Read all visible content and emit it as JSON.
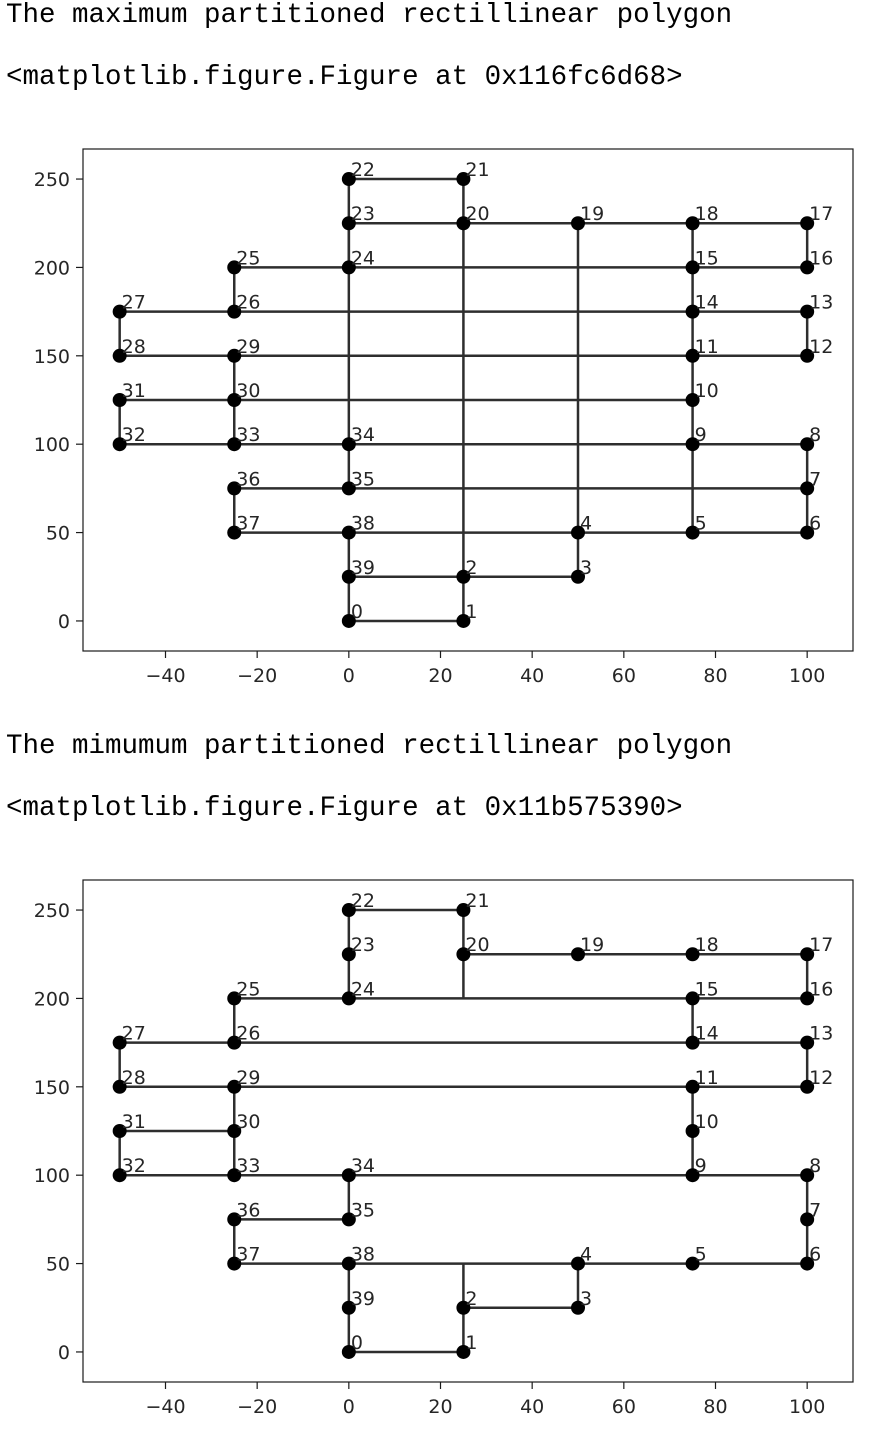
{
  "cells": [
    {
      "caption": "The maximum partitioned rectillinear polygon",
      "repr": "<matplotlib.figure.Figure at 0x116fc6d68>"
    },
    {
      "caption": "The mimumum partitioned rectillinear polygon",
      "repr": "<matplotlib.figure.Figure at 0x11b575390>"
    }
  ],
  "chart_data": [
    {
      "type": "line",
      "title": "",
      "xlabel": "",
      "ylabel": "",
      "xlim": [
        -58,
        110
      ],
      "ylim": [
        -17,
        267
      ],
      "xticks": [
        -40,
        -20,
        0,
        20,
        40,
        60,
        80,
        100
      ],
      "yticks": [
        0,
        50,
        100,
        150,
        200,
        250
      ],
      "grid": false,
      "line_color": "#2e2e2e",
      "marker_color": "#000000",
      "points": [
        {
          "label": "0",
          "x": 0,
          "y": 0
        },
        {
          "label": "1",
          "x": 25,
          "y": 0
        },
        {
          "label": "2",
          "x": 25,
          "y": 25
        },
        {
          "label": "3",
          "x": 50,
          "y": 25
        },
        {
          "label": "4",
          "x": 50,
          "y": 50
        },
        {
          "label": "5",
          "x": 75,
          "y": 50
        },
        {
          "label": "6",
          "x": 100,
          "y": 50
        },
        {
          "label": "7",
          "x": 100,
          "y": 75
        },
        {
          "label": "8",
          "x": 100,
          "y": 100
        },
        {
          "label": "9",
          "x": 75,
          "y": 100
        },
        {
          "label": "10",
          "x": 75,
          "y": 125
        },
        {
          "label": "11",
          "x": 75,
          "y": 150
        },
        {
          "label": "12",
          "x": 100,
          "y": 150
        },
        {
          "label": "13",
          "x": 100,
          "y": 175
        },
        {
          "label": "14",
          "x": 75,
          "y": 175
        },
        {
          "label": "15",
          "x": 75,
          "y": 200
        },
        {
          "label": "16",
          "x": 100,
          "y": 200
        },
        {
          "label": "17",
          "x": 100,
          "y": 225
        },
        {
          "label": "18",
          "x": 75,
          "y": 225
        },
        {
          "label": "19",
          "x": 50,
          "y": 225
        },
        {
          "label": "20",
          "x": 25,
          "y": 225
        },
        {
          "label": "21",
          "x": 25,
          "y": 250
        },
        {
          "label": "22",
          "x": 0,
          "y": 250
        },
        {
          "label": "23",
          "x": 0,
          "y": 225
        },
        {
          "label": "24",
          "x": 0,
          "y": 200
        },
        {
          "label": "25",
          "x": -25,
          "y": 200
        },
        {
          "label": "26",
          "x": -25,
          "y": 175
        },
        {
          "label": "27",
          "x": -50,
          "y": 175
        },
        {
          "label": "28",
          "x": -50,
          "y": 150
        },
        {
          "label": "29",
          "x": -25,
          "y": 150
        },
        {
          "label": "30",
          "x": -25,
          "y": 125
        },
        {
          "label": "31",
          "x": -50,
          "y": 125
        },
        {
          "label": "32",
          "x": -50,
          "y": 100
        },
        {
          "label": "33",
          "x": -25,
          "y": 100
        },
        {
          "label": "34",
          "x": 0,
          "y": 100
        },
        {
          "label": "35",
          "x": 0,
          "y": 75
        },
        {
          "label": "36",
          "x": -25,
          "y": 75
        },
        {
          "label": "37",
          "x": -25,
          "y": 50
        },
        {
          "label": "38",
          "x": 0,
          "y": 50
        },
        {
          "label": "39",
          "x": 0,
          "y": 25
        }
      ],
      "segments": [
        [
          0,
          0,
          25,
          0
        ],
        [
          25,
          0,
          25,
          25
        ],
        [
          25,
          25,
          50,
          25
        ],
        [
          50,
          25,
          50,
          50
        ],
        [
          50,
          50,
          100,
          50
        ],
        [
          100,
          50,
          100,
          100
        ],
        [
          100,
          100,
          75,
          100
        ],
        [
          75,
          100,
          75,
          150
        ],
        [
          75,
          150,
          100,
          150
        ],
        [
          100,
          150,
          100,
          175
        ],
        [
          100,
          175,
          75,
          175
        ],
        [
          75,
          175,
          75,
          200
        ],
        [
          75,
          200,
          100,
          200
        ],
        [
          100,
          200,
          100,
          225
        ],
        [
          100,
          225,
          25,
          225
        ],
        [
          25,
          225,
          25,
          250
        ],
        [
          25,
          250,
          0,
          250
        ],
        [
          0,
          250,
          0,
          200
        ],
        [
          0,
          200,
          -25,
          200
        ],
        [
          -25,
          200,
          -25,
          175
        ],
        [
          -25,
          175,
          -50,
          175
        ],
        [
          -50,
          175,
          -50,
          150
        ],
        [
          -50,
          150,
          -25,
          150
        ],
        [
          -25,
          150,
          -25,
          125
        ],
        [
          -25,
          125,
          -50,
          125
        ],
        [
          -50,
          125,
          -50,
          100
        ],
        [
          -50,
          100,
          0,
          100
        ],
        [
          0,
          100,
          0,
          75
        ],
        [
          0,
          75,
          -25,
          75
        ],
        [
          -25,
          75,
          -25,
          50
        ],
        [
          -25,
          50,
          0,
          50
        ],
        [
          0,
          50,
          0,
          0
        ],
        [
          0,
          225,
          25,
          225
        ],
        [
          0,
          200,
          75,
          200
        ],
        [
          -25,
          175,
          75,
          175
        ],
        [
          -25,
          150,
          75,
          150
        ],
        [
          -25,
          125,
          75,
          125
        ],
        [
          0,
          100,
          75,
          100
        ],
        [
          0,
          75,
          100,
          75
        ],
        [
          0,
          50,
          50,
          50
        ],
        [
          0,
          25,
          25,
          25
        ],
        [
          25,
          225,
          25,
          25
        ],
        [
          50,
          225,
          50,
          50
        ],
        [
          75,
          225,
          75,
          200
        ],
        [
          75,
          175,
          75,
          150
        ],
        [
          75,
          100,
          75,
          50
        ],
        [
          0,
          225,
          0,
          100
        ],
        [
          -25,
          200,
          -25,
          175
        ],
        [
          -25,
          150,
          -25,
          100
        ]
      ]
    },
    {
      "type": "line",
      "title": "",
      "xlabel": "",
      "ylabel": "",
      "xlim": [
        -58,
        110
      ],
      "ylim": [
        -17,
        267
      ],
      "xticks": [
        -40,
        -20,
        0,
        20,
        40,
        60,
        80,
        100
      ],
      "yticks": [
        0,
        50,
        100,
        150,
        200,
        250
      ],
      "grid": false,
      "line_color": "#2e2e2e",
      "marker_color": "#000000",
      "points": [
        {
          "label": "0",
          "x": 0,
          "y": 0
        },
        {
          "label": "1",
          "x": 25,
          "y": 0
        },
        {
          "label": "2",
          "x": 25,
          "y": 25
        },
        {
          "label": "3",
          "x": 50,
          "y": 25
        },
        {
          "label": "4",
          "x": 50,
          "y": 50
        },
        {
          "label": "5",
          "x": 75,
          "y": 50
        },
        {
          "label": "6",
          "x": 100,
          "y": 50
        },
        {
          "label": "7",
          "x": 100,
          "y": 75
        },
        {
          "label": "8",
          "x": 100,
          "y": 100
        },
        {
          "label": "9",
          "x": 75,
          "y": 100
        },
        {
          "label": "10",
          "x": 75,
          "y": 125
        },
        {
          "label": "11",
          "x": 75,
          "y": 150
        },
        {
          "label": "12",
          "x": 100,
          "y": 150
        },
        {
          "label": "13",
          "x": 100,
          "y": 175
        },
        {
          "label": "14",
          "x": 75,
          "y": 175
        },
        {
          "label": "15",
          "x": 75,
          "y": 200
        },
        {
          "label": "16",
          "x": 100,
          "y": 200
        },
        {
          "label": "17",
          "x": 100,
          "y": 225
        },
        {
          "label": "18",
          "x": 75,
          "y": 225
        },
        {
          "label": "19",
          "x": 50,
          "y": 225
        },
        {
          "label": "20",
          "x": 25,
          "y": 225
        },
        {
          "label": "21",
          "x": 25,
          "y": 250
        },
        {
          "label": "22",
          "x": 0,
          "y": 250
        },
        {
          "label": "23",
          "x": 0,
          "y": 225
        },
        {
          "label": "24",
          "x": 0,
          "y": 200
        },
        {
          "label": "25",
          "x": -25,
          "y": 200
        },
        {
          "label": "26",
          "x": -25,
          "y": 175
        },
        {
          "label": "27",
          "x": -50,
          "y": 175
        },
        {
          "label": "28",
          "x": -50,
          "y": 150
        },
        {
          "label": "29",
          "x": -25,
          "y": 150
        },
        {
          "label": "30",
          "x": -25,
          "y": 125
        },
        {
          "label": "31",
          "x": -50,
          "y": 125
        },
        {
          "label": "32",
          "x": -50,
          "y": 100
        },
        {
          "label": "33",
          "x": -25,
          "y": 100
        },
        {
          "label": "34",
          "x": 0,
          "y": 100
        },
        {
          "label": "35",
          "x": 0,
          "y": 75
        },
        {
          "label": "36",
          "x": -25,
          "y": 75
        },
        {
          "label": "37",
          "x": -25,
          "y": 50
        },
        {
          "label": "38",
          "x": 0,
          "y": 50
        },
        {
          "label": "39",
          "x": 0,
          "y": 25
        }
      ],
      "segments": [
        [
          0,
          0,
          25,
          0
        ],
        [
          25,
          0,
          25,
          25
        ],
        [
          25,
          25,
          50,
          25
        ],
        [
          50,
          25,
          50,
          50
        ],
        [
          50,
          50,
          100,
          50
        ],
        [
          100,
          50,
          100,
          100
        ],
        [
          100,
          100,
          75,
          100
        ],
        [
          75,
          100,
          75,
          150
        ],
        [
          75,
          150,
          100,
          150
        ],
        [
          100,
          150,
          100,
          175
        ],
        [
          100,
          175,
          75,
          175
        ],
        [
          75,
          175,
          75,
          200
        ],
        [
          75,
          200,
          100,
          200
        ],
        [
          100,
          200,
          100,
          225
        ],
        [
          100,
          225,
          25,
          225
        ],
        [
          25,
          225,
          25,
          250
        ],
        [
          25,
          250,
          0,
          250
        ],
        [
          0,
          250,
          0,
          200
        ],
        [
          0,
          200,
          -25,
          200
        ],
        [
          -25,
          200,
          -25,
          175
        ],
        [
          -25,
          175,
          -50,
          175
        ],
        [
          -50,
          175,
          -50,
          150
        ],
        [
          -50,
          150,
          -25,
          150
        ],
        [
          -25,
          150,
          -25,
          125
        ],
        [
          -25,
          125,
          -50,
          125
        ],
        [
          -50,
          125,
          -50,
          100
        ],
        [
          -50,
          100,
          0,
          100
        ],
        [
          0,
          100,
          0,
          75
        ],
        [
          0,
          75,
          -25,
          75
        ],
        [
          -25,
          75,
          -25,
          50
        ],
        [
          -25,
          50,
          0,
          50
        ],
        [
          0,
          50,
          0,
          0
        ],
        [
          25,
          225,
          25,
          200
        ],
        [
          0,
          200,
          75,
          200
        ],
        [
          -25,
          175,
          75,
          175
        ],
        [
          -25,
          150,
          75,
          150
        ],
        [
          0,
          100,
          75,
          100
        ],
        [
          25,
          50,
          25,
          25
        ],
        [
          0,
          50,
          50,
          50
        ],
        [
          -25,
          150,
          -25,
          100
        ]
      ]
    }
  ]
}
